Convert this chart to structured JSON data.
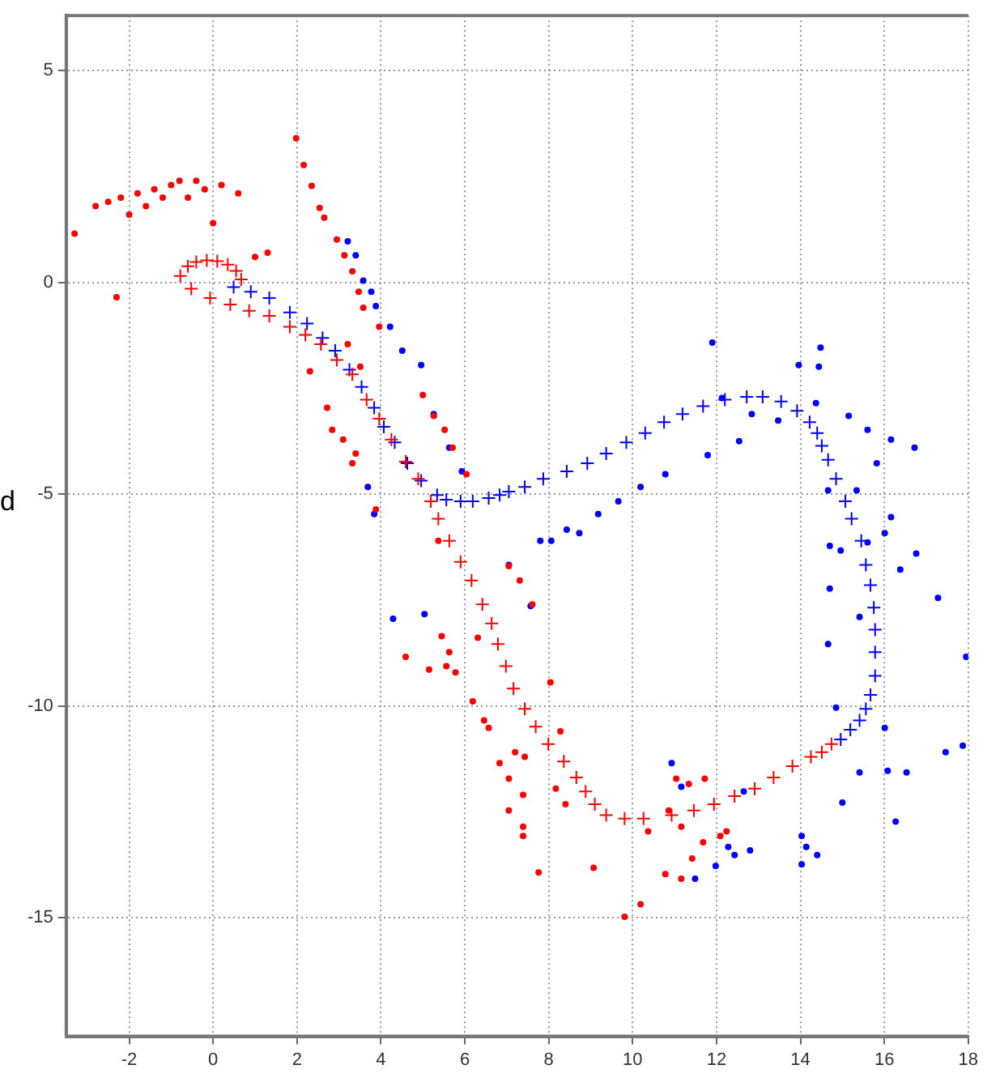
{
  "chart_data": {
    "type": "scatter",
    "ylabel": "d",
    "xlim": [
      -3.5,
      18
    ],
    "ylim": [
      -17.8,
      6.3
    ],
    "xticks": [
      -2,
      0,
      2,
      4,
      6,
      8,
      10,
      12,
      14,
      16,
      18
    ],
    "yticks": [
      -15,
      -10,
      -5,
      0,
      5
    ],
    "grid": true,
    "legend": false,
    "series": [
      {
        "color": "#ff0000",
        "marker": "circle",
        "x": [
          -3.3,
          -2.8,
          -2.5,
          -2.2,
          -2.0,
          -1.8,
          -1.6,
          -1.4,
          -1.2,
          -1.0,
          -0.8,
          -0.6,
          -0.4,
          -0.2,
          0.2,
          0.6,
          0.0,
          -2.3,
          1.0,
          1.3,
          1.98,
          2.16,
          2.35,
          2.54,
          2.65,
          2.95,
          3.13,
          3.32,
          3.47,
          3.58,
          3.96,
          5.0,
          5.26,
          5.52,
          5.71,
          6.04,
          3.21,
          3.51,
          2.31,
          2.72,
          2.84,
          3.1,
          3.4,
          3.32,
          3.88,
          5.37,
          4.59,
          5.45,
          5.63,
          5.15,
          5.56,
          5.78,
          6.31,
          6.19,
          6.46,
          6.57,
          6.83,
          7.2,
          7.43,
          7.05,
          7.39,
          7.05,
          7.39,
          7.39,
          7.76,
          9.07,
          8.04,
          8.28,
          8.17,
          8.4,
          10.37,
          9.81,
          10.19,
          10.78,
          11.16,
          11.42,
          11.68,
          12.09,
          12.24,
          11.04,
          11.34,
          11.72,
          10.86,
          11.16,
          7.05,
          7.31,
          7.61
        ],
        "values": [
          1.15,
          1.8,
          1.9,
          2.0,
          1.6,
          2.1,
          1.8,
          2.2,
          2.0,
          2.3,
          2.4,
          2.0,
          2.4,
          2.2,
          2.3,
          2.1,
          1.4,
          -0.35,
          0.6,
          0.7,
          3.4,
          2.77,
          2.28,
          1.76,
          1.53,
          1.01,
          0.64,
          0.26,
          -0.22,
          -0.6,
          -1.05,
          -2.66,
          -3.15,
          -3.48,
          -3.9,
          -4.53,
          -1.46,
          -1.99,
          -2.1,
          -2.96,
          -3.48,
          -3.71,
          -4.04,
          -4.27,
          -5.36,
          -6.1,
          -8.84,
          -8.35,
          -8.73,
          -9.14,
          -9.06,
          -9.21,
          -8.39,
          -9.89,
          -10.34,
          -10.52,
          -11.35,
          -11.09,
          -11.2,
          -11.72,
          -12.1,
          -12.47,
          -12.85,
          -13.07,
          -13.93,
          -13.82,
          -9.44,
          -10.6,
          -11.95,
          -12.32,
          -12.96,
          -14.98,
          -14.68,
          -13.97,
          -14.08,
          -13.6,
          -13.22,
          -13.07,
          -12.96,
          -11.72,
          -11.84,
          -11.72,
          -12.47,
          -12.85,
          -6.7,
          -7.04,
          -7.6
        ]
      },
      {
        "color": "#ff0000",
        "marker": "cross",
        "x": [
          -0.78,
          -0.6,
          -0.4,
          -0.15,
          0.1,
          0.35,
          0.55,
          0.67,
          -0.52,
          -0.07,
          0.41,
          0.86,
          1.34,
          1.83,
          2.2,
          2.57,
          2.95,
          3.32,
          3.66,
          3.96,
          4.25,
          4.59,
          4.89,
          5.19,
          5.37,
          5.63,
          5.9,
          6.16,
          6.42,
          6.64,
          6.79,
          6.98,
          7.16,
          7.43,
          7.69,
          7.99,
          8.36,
          8.66,
          8.88,
          9.1,
          9.37,
          9.81,
          10.26,
          10.93,
          11.46,
          11.94,
          12.43,
          12.91,
          13.36,
          13.81,
          14.25,
          14.51,
          14.74
        ],
        "values": [
          0.15,
          0.38,
          0.48,
          0.52,
          0.5,
          0.42,
          0.27,
          0.07,
          -0.15,
          -0.37,
          -0.52,
          -0.67,
          -0.79,
          -1.05,
          -1.24,
          -1.46,
          -1.83,
          -2.17,
          -2.77,
          -3.22,
          -3.71,
          -4.23,
          -4.64,
          -5.17,
          -5.58,
          -6.1,
          -6.6,
          -7.04,
          -7.6,
          -8.05,
          -8.54,
          -9.06,
          -9.59,
          -10.07,
          -10.49,
          -10.9,
          -11.31,
          -11.69,
          -12.02,
          -12.32,
          -12.58,
          -12.66,
          -12.66,
          -12.58,
          -12.47,
          -12.32,
          -12.13,
          -11.95,
          -11.69,
          -11.42,
          -11.2,
          -11.09,
          -10.9
        ]
      },
      {
        "color": "#0000ff",
        "marker": "circle",
        "x": [
          3.21,
          3.4,
          3.58,
          3.77,
          3.88,
          4.22,
          4.51,
          4.96,
          5.26,
          5.63,
          5.93,
          3.69,
          3.84,
          7.8,
          8.06,
          8.43,
          8.73,
          9.18,
          9.66,
          10.19,
          10.78,
          11.79,
          12.54,
          11.9,
          12.13,
          12.84,
          13.47,
          13.96,
          14.48,
          14.44,
          14.37,
          15.15,
          15.6,
          16.16,
          16.72,
          15.82,
          15.34,
          14.66,
          16.16,
          16.01,
          14.7,
          14.96,
          15.6,
          16.38,
          16.76,
          17.28,
          17.95,
          14.7,
          14.66,
          14.85,
          15.41,
          16.01,
          16.08,
          16.53,
          15.41,
          15.0,
          16.27,
          14.03,
          14.14,
          14.4,
          14.03,
          17.46,
          17.87,
          12.28,
          12.43,
          12.8,
          11.98,
          12.65,
          10.93,
          11.16,
          11.49,
          7.05,
          7.57,
          4.29,
          5.04
        ],
        "values": [
          0.97,
          0.64,
          0.04,
          -0.22,
          -0.56,
          -1.05,
          -1.61,
          -1.95,
          -3.11,
          -3.9,
          -4.46,
          -4.83,
          -5.47,
          -6.1,
          -6.1,
          -5.84,
          -5.92,
          -5.47,
          -5.17,
          -4.83,
          -4.53,
          -4.08,
          -3.75,
          -1.42,
          -2.73,
          -3.11,
          -3.26,
          -1.95,
          -1.54,
          -1.99,
          -2.85,
          -3.15,
          -3.48,
          -3.71,
          -3.9,
          -4.27,
          -4.91,
          -4.91,
          -5.54,
          -5.92,
          -6.22,
          -6.33,
          -6.14,
          -6.78,
          -6.4,
          -7.45,
          -8.84,
          -7.23,
          -8.54,
          -10.04,
          -7.9,
          -10.52,
          -11.53,
          -11.57,
          -11.57,
          -12.28,
          -12.73,
          -13.07,
          -13.33,
          -13.52,
          -13.74,
          -11.09,
          -10.94,
          -13.33,
          -13.52,
          -13.41,
          -13.78,
          -12.02,
          -11.35,
          -11.91,
          -14.08,
          -6.67,
          -7.64,
          -7.94,
          -7.83
        ]
      },
      {
        "color": "#0000ff",
        "marker": "cross",
        "x": [
          0.49,
          0.9,
          1.34,
          1.83,
          2.24,
          2.61,
          2.91,
          3.25,
          3.54,
          3.84,
          4.07,
          4.33,
          4.63,
          4.96,
          5.34,
          5.56,
          5.9,
          6.19,
          6.57,
          6.83,
          7.05,
          7.43,
          7.87,
          8.43,
          8.92,
          9.37,
          9.85,
          10.3,
          10.75,
          11.19,
          11.68,
          12.2,
          12.72,
          13.1,
          13.54,
          13.92,
          14.22,
          14.4,
          14.51,
          14.66,
          14.85,
          15.07,
          15.22,
          15.45,
          15.56,
          15.67,
          15.75,
          15.78,
          15.78,
          15.78,
          15.67,
          15.56,
          15.41,
          15.19,
          14.96
        ],
        "values": [
          -0.11,
          -0.22,
          -0.37,
          -0.71,
          -0.97,
          -1.31,
          -1.61,
          -2.06,
          -2.47,
          -2.96,
          -3.41,
          -3.78,
          -4.27,
          -4.68,
          -5.02,
          -5.13,
          -5.17,
          -5.17,
          -5.09,
          -5.02,
          -4.94,
          -4.83,
          -4.64,
          -4.46,
          -4.27,
          -4.04,
          -3.78,
          -3.56,
          -3.3,
          -3.11,
          -2.92,
          -2.77,
          -2.7,
          -2.7,
          -2.81,
          -3.03,
          -3.3,
          -3.56,
          -3.86,
          -4.19,
          -4.64,
          -5.17,
          -5.58,
          -6.1,
          -6.67,
          -7.15,
          -7.68,
          -8.2,
          -8.73,
          -9.29,
          -9.74,
          -10.07,
          -10.34,
          -10.56,
          -10.79
        ]
      }
    ]
  }
}
